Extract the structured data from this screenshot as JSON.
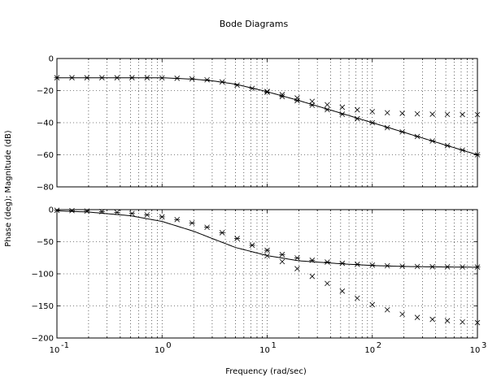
{
  "chart_data": {
    "type": "line",
    "title": "Bode Diagrams",
    "xlabel": "Frequency (rad/sec)",
    "ylabel": "Phase (deg); Magnitude (dB)",
    "xscale": "log",
    "xlim": [
      0.1,
      1000
    ],
    "x_tick_labels": [
      "10",
      "10",
      "10",
      "10",
      "10"
    ],
    "x_tick_exponents": [
      "-1",
      "0",
      "1",
      "2",
      "3"
    ],
    "grid": true,
    "subplots": [
      {
        "name": "magnitude",
        "ylim": [
          -80,
          0
        ],
        "yticks": [
          0,
          -20,
          -40,
          -60,
          -80
        ],
        "ytick_labels": [
          "0",
          "−20",
          "−40",
          "−60",
          "−80"
        ],
        "curve": {
          "x": [
            0.1,
            0.2,
            0.5,
            1,
            2,
            3,
            5,
            10,
            20,
            50,
            100,
            200,
            500,
            1000
          ],
          "y": [
            -12,
            -12,
            -12,
            -12,
            -12.9,
            -13.9,
            -16.0,
            -20.7,
            -26.2,
            -34.0,
            -40.0,
            -46.0,
            -54.0,
            -60.0
          ]
        },
        "series": [
          {
            "marker": "star",
            "x": [
              0.1,
              0.139,
              0.193,
              0.268,
              0.373,
              0.518,
              0.72,
              1.0,
              1.39,
              1.93,
              2.68,
              3.73,
              5.18,
              7.2,
              10,
              13.9,
              19.3,
              26.8,
              37.3,
              51.8,
              72,
              100,
              139,
              193,
              268,
              373,
              518,
              720,
              1000
            ],
            "y": [
              -12,
              -12,
              -12,
              -12,
              -12,
              -12,
              -12,
              -12.1,
              -12.3,
              -12.7,
              -13.3,
              -14.6,
              -16.6,
              -18.6,
              -21.0,
              -23.7,
              -26.3,
              -29.1,
              -31.9,
              -34.7,
              -37.5,
              -40.0,
              -43.1,
              -45.7,
              -48.6,
              -51.4,
              -54.3,
              -57.1,
              -60.0
            ]
          },
          {
            "marker": "x",
            "x": [
              10,
              13.9,
              19.3,
              26.8,
              37.3,
              51.8,
              72,
              100,
              139,
              193,
              268,
              373,
              518,
              720,
              1000
            ],
            "y": [
              -20.5,
              -22.5,
              -24.6,
              -26.7,
              -28.8,
              -30.4,
              -32.0,
              -33.1,
              -33.8,
              -34.2,
              -34.5,
              -34.7,
              -34.8,
              -34.9,
              -35.0
            ]
          }
        ]
      },
      {
        "name": "phase",
        "ylim": [
          -200,
          0
        ],
        "yticks": [
          0,
          -50,
          -100,
          -150,
          -200
        ],
        "ytick_labels": [
          "0",
          "−50",
          "−100",
          "−150",
          "−200"
        ],
        "curve": {
          "x": [
            0.1,
            0.2,
            0.5,
            1,
            2,
            3,
            5,
            10,
            20,
            50,
            100,
            200,
            500,
            1000
          ],
          "y": [
            -1.9,
            -3.8,
            -9.5,
            -18.4,
            -33.7,
            -45.0,
            -59.0,
            -71.6,
            -79.7,
            -84.3,
            -87.1,
            -88.6,
            -89.4,
            -89.7
          ]
        },
        "series": [
          {
            "marker": "star",
            "x": [
              0.1,
              0.139,
              0.193,
              0.268,
              0.373,
              0.518,
              0.72,
              1.0,
              1.39,
              1.93,
              2.68,
              3.73,
              5.18,
              7.2,
              10,
              13.9,
              19.3,
              26.8,
              37.3,
              51.8,
              72,
              100,
              139,
              193,
              268,
              373,
              518,
              720,
              1000
            ],
            "y": [
              -1,
              -1.6,
              -2.2,
              -3.1,
              -4.3,
              -6.0,
              -8.2,
              -11.3,
              -15.5,
              -20.9,
              -27.5,
              -36.0,
              -45.0,
              -55.5,
              -63.4,
              -70.0,
              -75.3,
              -78.9,
              -81.7,
              -83.6,
              -85.2,
              -86.5,
              -87.5,
              -88.1,
              -88.6,
              -89.0,
              -89.2,
              -89.4,
              -89.5
            ]
          },
          {
            "marker": "x",
            "x": [
              10,
              13.9,
              19.3,
              26.8,
              37.3,
              51.8,
              72,
              100,
              139,
              193,
              268,
              373,
              518,
              720,
              1000
            ],
            "y": [
              -72,
              -81,
              -92,
              -104,
              -115,
              -127,
              -138,
              -148,
              -156,
              -163,
              -168,
              -171,
              -173,
              -175,
              -176
            ]
          }
        ]
      }
    ]
  }
}
